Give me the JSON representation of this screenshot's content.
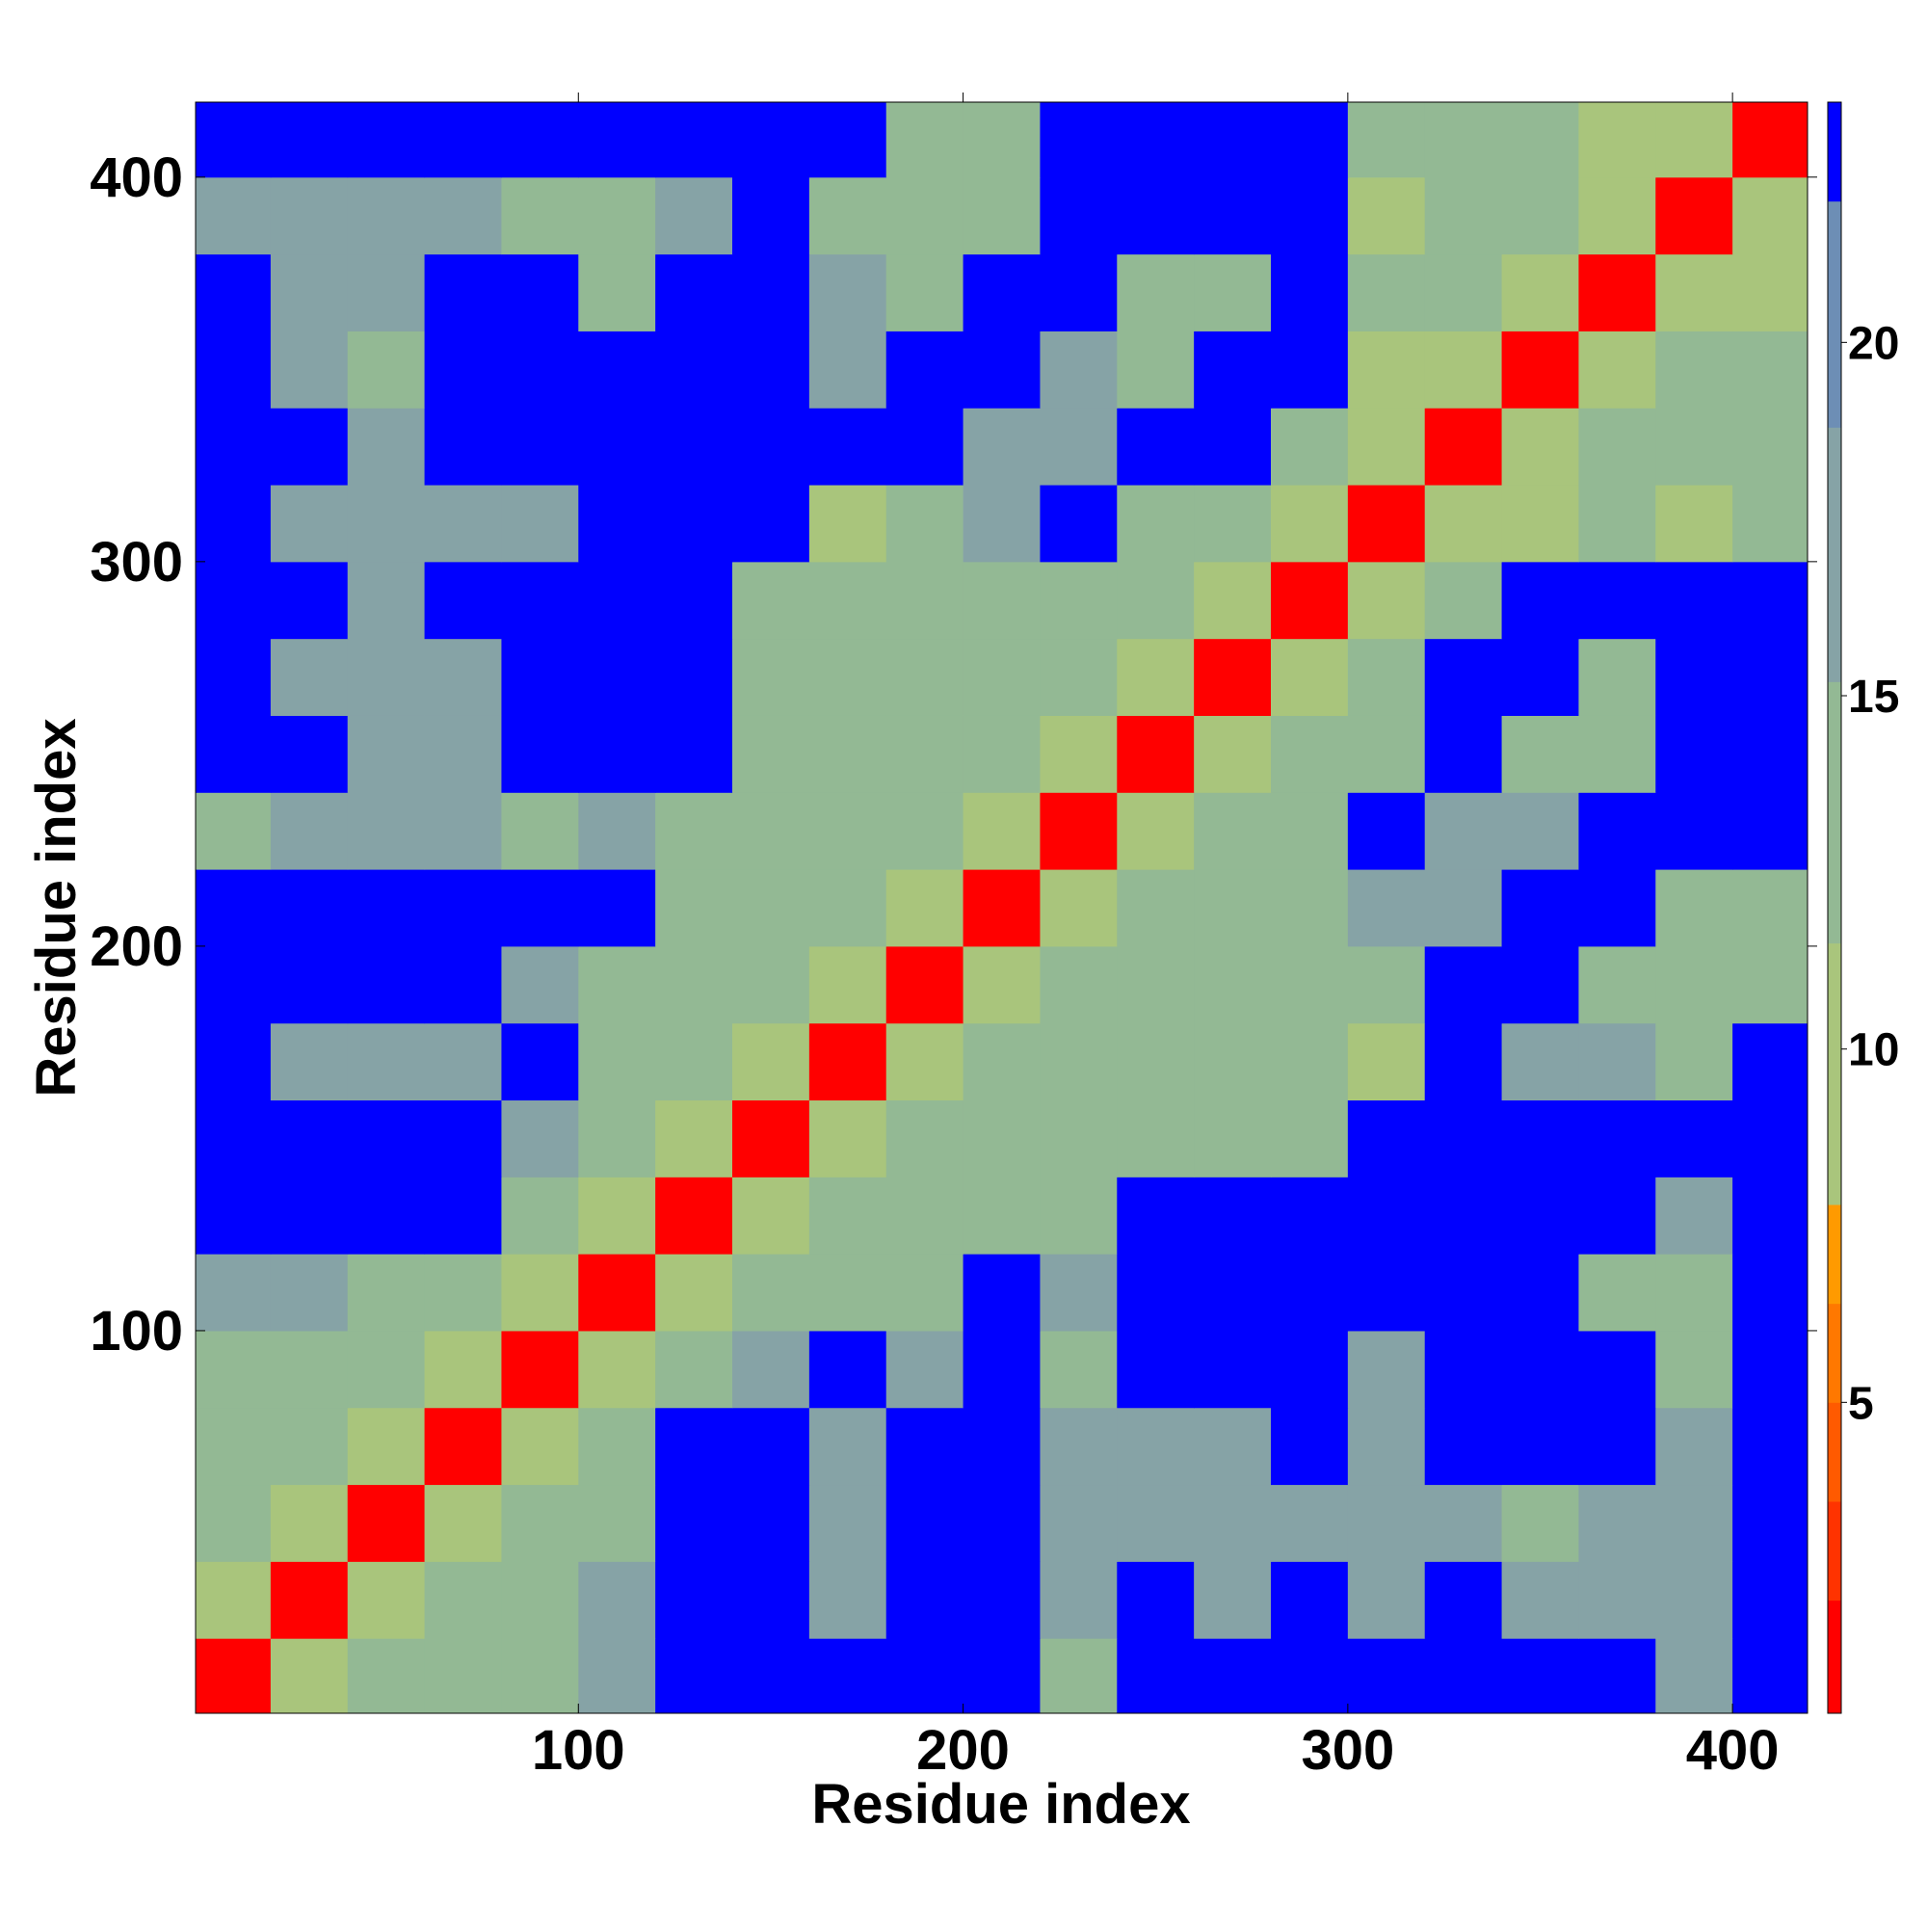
{
  "chart_data": {
    "type": "heatmap",
    "x_label": "Residue index",
    "y_label": "Residue index",
    "x": [
      10,
      30,
      50,
      70,
      90,
      110,
      130,
      150,
      170,
      190,
      210,
      230,
      250,
      270,
      290,
      310,
      330,
      350,
      370,
      390,
      410
    ],
    "y": [
      10,
      30,
      50,
      70,
      90,
      110,
      130,
      150,
      170,
      190,
      210,
      230,
      250,
      270,
      290,
      310,
      330,
      350,
      370,
      390,
      410
    ],
    "z": [
      [
        2,
        10,
        13,
        14,
        14,
        16,
        23,
        23,
        23,
        23,
        23,
        15,
        23,
        23,
        23,
        23,
        23,
        23,
        23,
        16,
        23
      ],
      [
        10,
        2,
        10,
        12,
        12,
        16,
        23,
        23,
        18,
        23,
        23,
        17,
        23,
        16,
        23,
        18,
        23,
        17,
        16,
        16,
        23
      ],
      [
        13,
        10,
        2,
        10,
        12,
        14,
        23,
        23,
        18,
        23,
        23,
        16,
        16,
        16,
        16,
        16,
        17,
        15,
        16,
        16,
        23
      ],
      [
        14,
        12,
        10,
        2,
        10,
        13,
        23,
        23,
        18,
        23,
        23,
        16,
        16,
        16,
        23,
        16,
        23,
        23,
        23,
        16,
        23
      ],
      [
        14,
        12,
        12,
        10,
        2,
        10,
        14,
        16,
        23,
        17,
        23,
        15,
        23,
        23,
        23,
        18,
        23,
        23,
        23,
        14,
        23
      ],
      [
        16,
        16,
        14,
        13,
        10,
        2,
        10,
        12,
        14,
        15,
        23,
        16,
        23,
        23,
        23,
        23,
        23,
        23,
        15,
        15,
        23
      ],
      [
        23,
        23,
        23,
        23,
        14,
        10,
        2,
        10,
        12,
        14,
        13,
        14,
        23,
        23,
        23,
        23,
        23,
        23,
        23,
        16,
        23
      ],
      [
        23,
        23,
        23,
        23,
        16,
        12,
        10,
        2,
        10,
        12,
        12,
        13,
        15,
        14,
        14,
        23,
        23,
        23,
        23,
        23,
        23
      ],
      [
        23,
        18,
        18,
        18,
        23,
        14,
        12,
        10,
        2,
        10,
        12,
        13,
        14,
        15,
        12,
        11,
        23,
        16,
        16,
        15,
        23
      ],
      [
        23,
        23,
        23,
        23,
        17,
        15,
        14,
        12,
        10,
        2,
        10,
        12,
        13,
        15,
        15,
        13,
        23,
        23,
        15,
        15,
        15
      ],
      [
        23,
        23,
        23,
        23,
        23,
        23,
        13,
        12,
        12,
        10,
        2,
        10,
        12,
        14,
        15,
        16,
        16,
        23,
        23,
        13,
        15
      ],
      [
        15,
        17,
        16,
        16,
        15,
        16,
        14,
        13,
        13,
        12,
        10,
        2,
        10,
        12,
        14,
        23,
        16,
        16,
        23,
        23,
        23
      ],
      [
        23,
        23,
        16,
        16,
        23,
        23,
        23,
        15,
        14,
        13,
        12,
        10,
        2,
        10,
        12,
        15,
        23,
        14,
        13,
        23,
        23
      ],
      [
        23,
        16,
        16,
        16,
        23,
        23,
        23,
        14,
        15,
        15,
        14,
        12,
        10,
        2,
        10,
        14,
        23,
        23,
        14,
        23,
        23
      ],
      [
        23,
        23,
        16,
        23,
        23,
        23,
        23,
        14,
        12,
        15,
        15,
        14,
        12,
        10,
        2,
        10,
        14,
        23,
        23,
        23,
        23
      ],
      [
        23,
        18,
        16,
        16,
        18,
        23,
        23,
        23,
        11,
        13,
        16,
        23,
        15,
        14,
        10,
        2,
        10,
        11,
        12,
        11,
        13
      ],
      [
        23,
        23,
        17,
        23,
        23,
        23,
        23,
        23,
        23,
        23,
        16,
        16,
        23,
        23,
        14,
        10,
        2,
        10,
        12,
        12,
        14
      ],
      [
        23,
        17,
        15,
        23,
        23,
        23,
        23,
        23,
        16,
        23,
        23,
        16,
        14,
        23,
        23,
        11,
        10,
        2,
        10,
        12,
        13
      ],
      [
        23,
        16,
        16,
        23,
        23,
        15,
        23,
        23,
        16,
        15,
        23,
        23,
        13,
        14,
        23,
        12,
        12,
        10,
        2,
        10,
        10
      ],
      [
        16,
        16,
        16,
        16,
        14,
        15,
        16,
        23,
        15,
        15,
        13,
        23,
        23,
        23,
        23,
        11,
        12,
        12,
        10,
        2,
        10
      ],
      [
        23,
        23,
        23,
        23,
        23,
        23,
        23,
        23,
        23,
        15,
        15,
        23,
        23,
        23,
        23,
        13,
        14,
        13,
        10,
        10,
        2
      ]
    ],
    "xlim": [
      0.5,
      419.5
    ],
    "ylim": [
      0.5,
      419.5
    ],
    "xticks": [
      100,
      200,
      300,
      400
    ],
    "yticks": [
      100,
      200,
      300,
      400
    ],
    "colorbar": {
      "levels": [
        0.6,
        2.2,
        3.6,
        5.0,
        6.4,
        7.8,
        11.5,
        15.2,
        18.8,
        22.0,
        23.4
      ],
      "colors": [
        "#ff0000",
        "#ff3300",
        "#ff5a00",
        "#ff7800",
        "#ff9a00",
        "#a9c57c",
        "#93b994",
        "#86a3a6",
        "#6d8eb5",
        "#0000ff"
      ],
      "ticks": [
        5,
        10,
        15,
        20
      ]
    }
  }
}
